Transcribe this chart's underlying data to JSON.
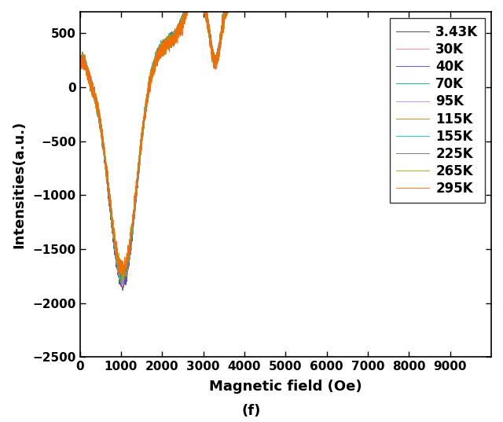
{
  "title": "",
  "xlabel": "Magnetic field (Oe)",
  "ylabel": "Intensities(a.u.)",
  "subtitle": "(f)",
  "xlim": [
    0,
    10000
  ],
  "ylim": [
    -2500,
    700
  ],
  "yticks": [
    -2500,
    -2000,
    -1500,
    -1000,
    -500,
    0,
    500
  ],
  "xticks": [
    0,
    1000,
    2000,
    3000,
    4000,
    5000,
    6000,
    7000,
    8000,
    9000
  ],
  "legend_labels": [
    "3.43K",
    "30K",
    "40K",
    "70K",
    "95K",
    "115K",
    "155K",
    "225K",
    "265K",
    "295K"
  ],
  "legend_colors": [
    "#3d3d3d",
    "#ff8888",
    "#4444ff",
    "#00bb77",
    "#bb88ff",
    "#bb8800",
    "#00cccc",
    "#886655",
    "#aaaa00",
    "#ff6600"
  ],
  "background_color": "#ffffff",
  "figsize": [
    6.4,
    5.37
  ],
  "dpi": 100
}
